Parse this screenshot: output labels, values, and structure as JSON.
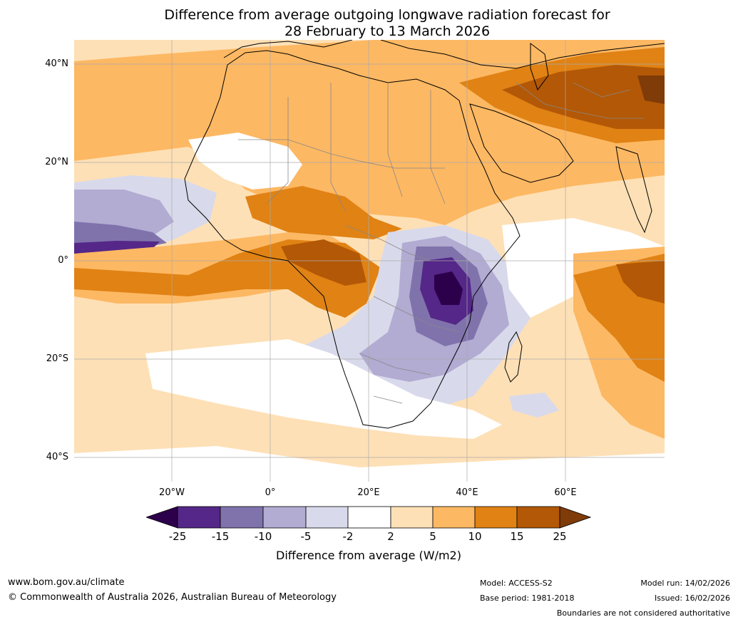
{
  "title": {
    "line1": "Difference from average outgoing longwave radiation forecast for",
    "line2": "28 February to 13 March 2026"
  },
  "axes": {
    "lat_labels": [
      "40°N",
      "20°N",
      "0°",
      "20°S",
      "40°S"
    ],
    "lon_labels": [
      "20°W",
      "0°",
      "20°E",
      "40°E",
      "60°E"
    ]
  },
  "colorbar": {
    "label": "Difference from average (W/m2)",
    "ticks": [
      "-25",
      "-15",
      "-10",
      "-5",
      "-2",
      "2",
      "5",
      "10",
      "15",
      "25"
    ],
    "colors": {
      "lt_m25": "#2d004b",
      "m25_m15": "#542788",
      "m15_m10": "#8073ac",
      "m10_m5": "#b2abd2",
      "m5_m2": "#d8daeb",
      "m2_p2": "#ffffff",
      "p2_p5": "#fee0b6",
      "p5_p10": "#fdb863",
      "p10_p15": "#e08214",
      "p15_p25": "#b35806",
      "gt_p25": "#7f3b08"
    }
  },
  "footer": {
    "website": "www.bom.gov.au/climate",
    "copyright": "© Commonwealth of Australia 2026, Australian Bureau of Meteorology",
    "model": "Model: ACCESS-S2",
    "base_period": "Base period: 1981-2018",
    "model_run": "Model run: 14/02/2026",
    "issued": "Issued: 16/02/2026",
    "boundaries": "Boundaries are not considered authoritative"
  }
}
